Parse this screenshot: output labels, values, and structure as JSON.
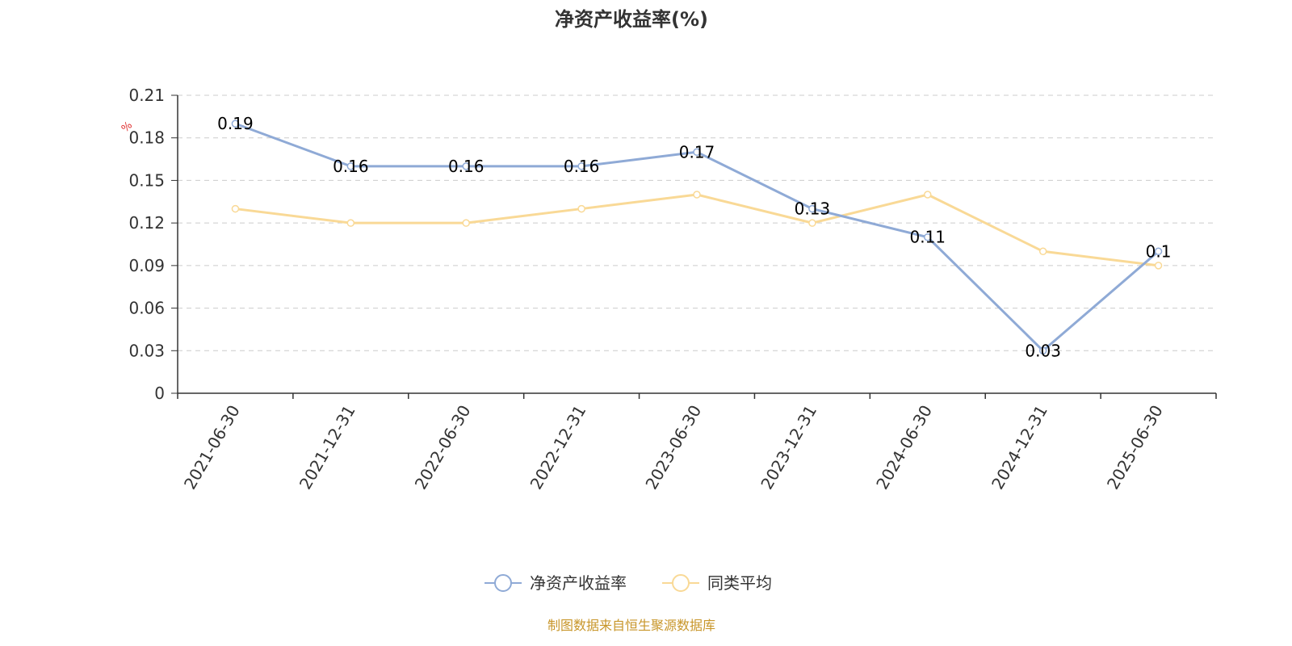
{
  "title": "净资产收益率(%)",
  "unit_label": "%",
  "source_note": "制图数据来自恒生聚源数据库",
  "colors": {
    "series_main": "#8faad6",
    "series_avg": "#f9d996",
    "grid": "#cccccc",
    "axis": "#333333",
    "unit": "#e03030",
    "source": "#c8962a"
  },
  "chart_data": {
    "type": "line",
    "title": "净资产收益率(%)",
    "x": [
      "2021-06-30",
      "2021-12-31",
      "2022-06-30",
      "2022-12-31",
      "2023-06-30",
      "2023-12-31",
      "2024-06-30",
      "2024-12-31",
      "2025-06-30"
    ],
    "ylim": [
      0,
      0.21
    ],
    "yticks": [
      "0",
      "0.03",
      "0.06",
      "0.09",
      "0.12",
      "0.15",
      "0.18",
      "0.21"
    ],
    "ylabel": "%",
    "grid": true,
    "legend_position": "bottom-center",
    "series": [
      {
        "name": "净资产收益率",
        "values": [
          0.19,
          0.16,
          0.16,
          0.16,
          0.17,
          0.13,
          0.11,
          0.03,
          0.1
        ],
        "labels": [
          "0.19",
          "0.16",
          "0.16",
          "0.16",
          "0.17",
          "0.13",
          "0.11",
          "0.03",
          "0.1"
        ],
        "show_labels": true
      },
      {
        "name": "同类平均",
        "values": [
          0.13,
          0.12,
          0.12,
          0.13,
          0.14,
          0.12,
          0.14,
          0.1,
          0.09
        ],
        "show_labels": false
      }
    ]
  }
}
